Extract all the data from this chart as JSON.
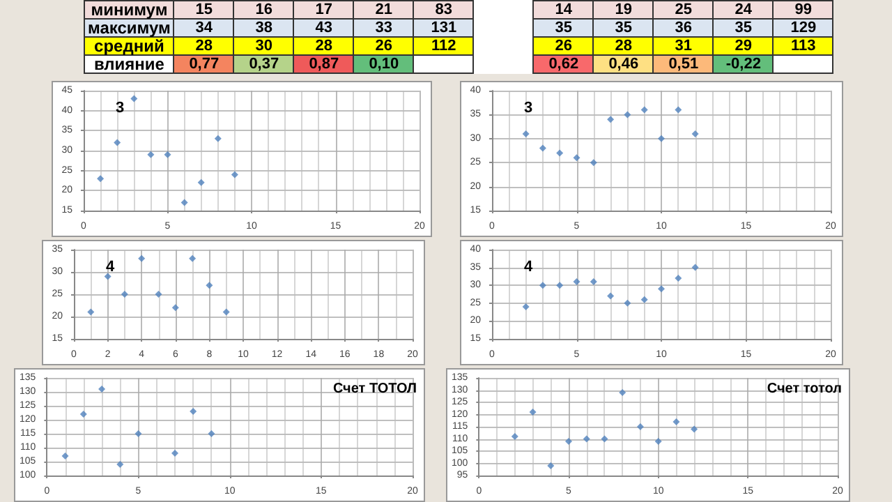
{
  "chart_data": [
    {
      "type": "other",
      "y_categories": [
        "минимум",
        "максимум",
        "средний",
        "влияние"
      ],
      "cell_labels": [
        [
          "15",
          "16",
          "17",
          "21",
          "83",
          null,
          "14",
          "19",
          "25",
          "24",
          "99"
        ],
        [
          "34",
          "38",
          "43",
          "33",
          "131",
          null,
          "35",
          "35",
          "36",
          "35",
          "129"
        ],
        [
          "28",
          "30",
          "28",
          "26",
          "112",
          null,
          "26",
          "28",
          "31",
          "29",
          "113"
        ],
        [
          "0,77",
          "0,37",
          "0,87",
          "0,10",
          null,
          null,
          "0,62",
          "0,46",
          "0,51",
          "-0,22",
          null
        ]
      ],
      "colors": [
        "#f4845f",
        "#b5d38a",
        "#ef5a5a",
        "#63be7b",
        null,
        null,
        "#f8696b",
        "#fee083",
        "#fcb97a",
        "#63be7b",
        null
      ]
    },
    {
      "type": "scatter",
      "title": "3",
      "x": [
        1,
        2,
        3,
        4,
        5,
        6,
        7,
        8,
        9
      ],
      "values": [
        23,
        32,
        43,
        29,
        29,
        17,
        22,
        33,
        24
      ],
      "color": "#4f81bd",
      "marker": "diamond",
      "grid": true,
      "xlim": [
        0,
        20
      ],
      "xticks": [
        0,
        5,
        10,
        15,
        20
      ],
      "ylim": [
        15,
        45
      ],
      "yticks": [
        15,
        20,
        25,
        30,
        35,
        40,
        45
      ]
    },
    {
      "type": "scatter",
      "title": "3",
      "x": [
        2,
        3,
        4,
        5,
        6,
        7,
        8,
        9,
        10,
        11,
        12
      ],
      "values": [
        31,
        28,
        27,
        26,
        25,
        34,
        35,
        36,
        30,
        36,
        31
      ],
      "color": "#4f81bd",
      "marker": "diamond",
      "grid": true,
      "xlim": [
        0,
        20
      ],
      "xticks": [
        0,
        5,
        10,
        15,
        20
      ],
      "ylim": [
        15,
        40
      ],
      "yticks": [
        15,
        20,
        25,
        30,
        35,
        40
      ]
    },
    {
      "type": "scatter",
      "title": "4",
      "x": [
        1,
        2,
        3,
        4,
        5,
        6,
        7,
        8,
        9
      ],
      "values": [
        21,
        29,
        25,
        33,
        25,
        22,
        33,
        27,
        21
      ],
      "color": "#4f81bd",
      "marker": "diamond",
      "grid": true,
      "xlim": [
        0,
        20
      ],
      "xticks": [
        0,
        2,
        4,
        6,
        8,
        10,
        12,
        14,
        16,
        18,
        20
      ],
      "ylim": [
        15,
        35
      ],
      "yticks": [
        15,
        20,
        25,
        30,
        35
      ]
    },
    {
      "type": "scatter",
      "title": "4",
      "x": [
        2,
        3,
        4,
        5,
        6,
        7,
        8,
        9,
        10,
        11,
        12
      ],
      "values": [
        24,
        30,
        30,
        31,
        31,
        27,
        25,
        26,
        29,
        32,
        35
      ],
      "color": "#4f81bd",
      "marker": "diamond",
      "grid": true,
      "xlim": [
        0,
        20
      ],
      "xticks": [
        0,
        5,
        10,
        15,
        20
      ],
      "ylim": [
        15,
        40
      ],
      "yticks": [
        15,
        20,
        25,
        30,
        35,
        40
      ]
    },
    {
      "type": "scatter",
      "title": "Счет ТОТОЛ",
      "x": [
        1,
        2,
        3,
        4,
        5,
        6,
        7,
        8,
        9
      ],
      "values": [
        107,
        122,
        131,
        104,
        115,
        null,
        108,
        123,
        115
      ],
      "color": "#4f81bd",
      "marker": "diamond",
      "grid": true,
      "xlim": [
        0,
        20
      ],
      "xticks": [
        0,
        5,
        10,
        15,
        20
      ],
      "ylim": [
        100,
        135
      ],
      "yticks": [
        100,
        105,
        110,
        115,
        120,
        125,
        130,
        135
      ]
    },
    {
      "type": "scatter",
      "title": "Счет тотол",
      "x": [
        2,
        3,
        4,
        5,
        6,
        7,
        8,
        9,
        10,
        11,
        12
      ],
      "values": [
        111,
        121,
        99,
        109,
        110,
        110,
        129,
        115,
        109,
        117,
        114
      ],
      "color": "#4f81bd",
      "marker": "diamond",
      "grid": true,
      "xlim": [
        0,
        20
      ],
      "xticks": [
        0,
        5,
        10,
        15,
        20
      ],
      "ylim": [
        95,
        135
      ],
      "yticks": [
        95,
        100,
        105,
        110,
        115,
        120,
        125,
        130,
        135
      ]
    }
  ]
}
